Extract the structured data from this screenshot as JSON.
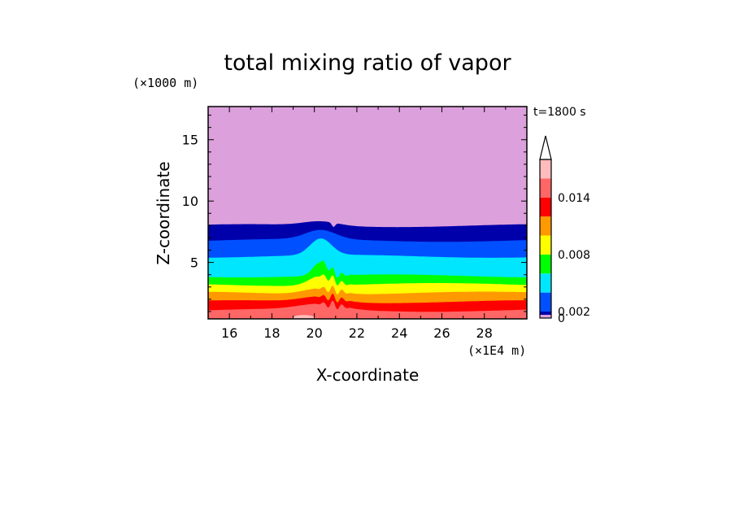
{
  "chart_data": {
    "type": "heatmap",
    "subtype": "filled-contour",
    "title": "total mixing ratio of vapor",
    "xlabel": "X-coordinate",
    "ylabel": "Z-coordinate",
    "x_unit": "(×1E4 m)",
    "y_unit": "(×1000 m)",
    "time_label": "t=1800 s",
    "xlim": [
      15,
      30
    ],
    "ylim": [
      0.4,
      17.7
    ],
    "x_ticks": [
      16,
      18,
      20,
      22,
      24,
      26,
      28
    ],
    "y_ticks": [
      5,
      10,
      15
    ],
    "colorbar": {
      "levels": [
        0,
        0.001,
        0.002,
        0.004,
        0.006,
        0.008,
        0.01,
        0.012,
        0.014,
        0.016
      ],
      "labeled_levels": [
        0,
        0.002,
        0.008,
        0.014
      ],
      "tick_labels": [
        "0",
        "0.002",
        "0.008",
        "0.014"
      ],
      "colors": [
        "#dca0dc",
        "#0000aa",
        "#0050ff",
        "#00e6ff",
        "#00ff00",
        "#ffff00",
        "#ff9900",
        "#ff0000",
        "#ff6666",
        "#ffbcbc"
      ],
      "extend": "max"
    },
    "bands": [
      {
        "color": "#ff6666",
        "min": 0.012,
        "base_top_z": 1.1
      },
      {
        "color": "#ff0000",
        "min": 0.01,
        "base_top_z": 1.8
      },
      {
        "color": "#ff9900",
        "min": 0.008,
        "base_top_z": 2.5
      },
      {
        "color": "#ffff00",
        "min": 0.006,
        "base_top_z": 3.2
      },
      {
        "color": "#00ff00",
        "min": 0.004,
        "base_top_z": 3.9
      },
      {
        "color": "#00e6ff",
        "min": 0.002,
        "base_top_z": 5.5
      },
      {
        "color": "#0050ff",
        "min": 0.001,
        "base_top_z": 6.8
      },
      {
        "color": "#0000aa",
        "min": 0.0,
        "base_top_z": 8.0
      }
    ],
    "background_color": "#dca0dc",
    "disturbance_center_x": 20.3
  }
}
